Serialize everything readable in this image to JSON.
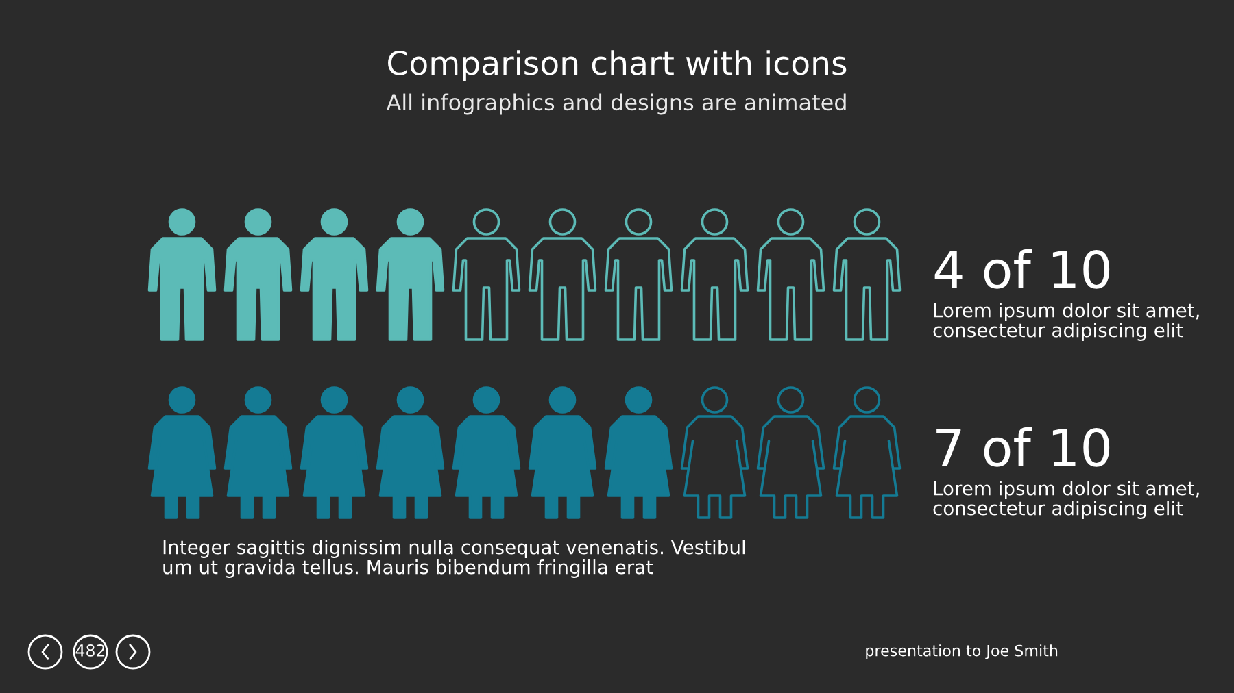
{
  "chart_data": {
    "type": "other",
    "title": "Comparison chart with icons",
    "subtitle": "All infographics and designs are animated",
    "categories": [
      "Lorem ipsum dolor sit amet,\nconsectetur adipiscing elit",
      "Lorem ipsum dolor sit amet,\nconsectetur adipiscing elit"
    ],
    "values": [
      4,
      7
    ],
    "colors": [
      "#5fc3bf",
      "#13809a"
    ],
    "value_labels": [
      "4 of 10",
      "7 of 10"
    ],
    "annotations": [
      "Integer sagittis dignissim nulla consequat venenatis. Vestibul\num ut gravida tellus. Mauris bibendum fringilla erat",
      "482",
      "presentation to Joe Smith"
    ]
  }
}
